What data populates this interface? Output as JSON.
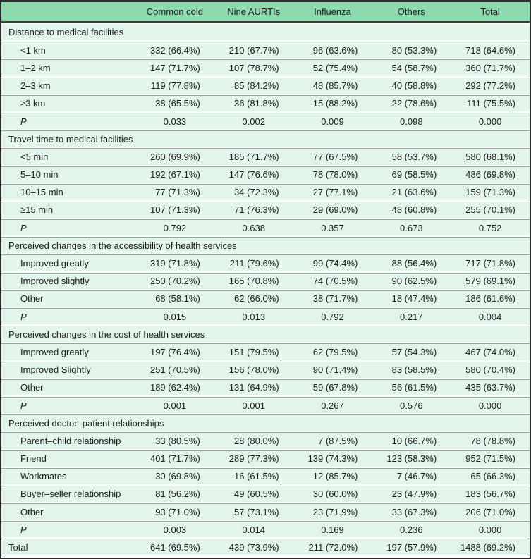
{
  "table": {
    "columns": [
      "Common cold",
      "Nine AURTIs",
      "Influenza",
      "Others",
      "Total"
    ],
    "p_label": "P",
    "sections": [
      {
        "title": "Distance to medical facilities",
        "rows": [
          {
            "label": "<1 km",
            "values": [
              "332 (66.4%)",
              "210 (67.7%)",
              "96 (63.6%)",
              "80 (53.3%)",
              "718 (64.6%)"
            ]
          },
          {
            "label": "1–2 km",
            "values": [
              "147 (71.7%)",
              "107 (78.7%)",
              "52 (75.4%)",
              "54 (58.7%)",
              "360 (71.7%)"
            ]
          },
          {
            "label": "2–3 km",
            "values": [
              "119 (77.8%)",
              "85 (84.2%)",
              "48 (85.7%)",
              "40 (58.8%)",
              "292 (77.2%)"
            ]
          },
          {
            "label": "≥3 km",
            "values": [
              "38 (65.5%)",
              "36 (81.8%)",
              "15 (88.2%)",
              "22 (78.6%)",
              "111 (75.5%)"
            ]
          }
        ],
        "p_values": [
          "0.033",
          "0.002",
          "0.009",
          "0.098",
          "0.000"
        ]
      },
      {
        "title": "Travel time to medical facilities",
        "rows": [
          {
            "label": "<5 min",
            "values": [
              "260 (69.9%)",
              "185 (71.7%)",
              "77 (67.5%)",
              "58 (53.7%)",
              "580 (68.1%)"
            ]
          },
          {
            "label": "5–10 min",
            "values": [
              "192 (67.1%)",
              "147 (76.6%)",
              "78 (78.0%)",
              "69 (58.5%)",
              "486 (69.8%)"
            ]
          },
          {
            "label": "10–15 min",
            "values": [
              "77 (71.3%)",
              "34 (72.3%)",
              "27 (77.1%)",
              "21 (63.6%)",
              "159 (71.3%)"
            ]
          },
          {
            "label": "≥15 min",
            "values": [
              "107 (71.3%)",
              "71 (76.3%)",
              "29 (69.0%)",
              "48 (60.8%)",
              "255 (70.1%)"
            ]
          }
        ],
        "p_values": [
          "0.792",
          "0.638",
          "0.357",
          "0.673",
          "0.752"
        ]
      },
      {
        "title": "Perceived changes in the accessibility of health services",
        "rows": [
          {
            "label": "Improved greatly",
            "values": [
              "319 (71.8%)",
              "211 (79.6%)",
              "99 (74.4%)",
              "88 (56.4%)",
              "717 (71.8%)"
            ]
          },
          {
            "label": "Improved slightly",
            "values": [
              "250 (70.2%)",
              "165 (70.8%)",
              "74 (70.5%)",
              "90 (62.5%)",
              "579 (69.1%)"
            ]
          },
          {
            "label": "Other",
            "values": [
              "68 (58.1%)",
              "62 (66.0%)",
              "38 (71.7%)",
              "18 (47.4%)",
              "186 (61.6%)"
            ]
          }
        ],
        "p_values": [
          "0.015",
          "0.013",
          "0.792",
          "0.217",
          "0.004"
        ]
      },
      {
        "title": "Perceived changes in the cost of health services",
        "rows": [
          {
            "label": "Improved greatly",
            "values": [
              "197 (76.4%)",
              "151 (79.5%)",
              "62 (79.5%)",
              "57 (54.3%)",
              "467 (74.0%)"
            ]
          },
          {
            "label": "Improved Slightly",
            "values": [
              "251 (70.5%)",
              "156 (78.0%)",
              "90 (71.4%)",
              "83 (58.5%)",
              "580 (70.4%)"
            ]
          },
          {
            "label": "Other",
            "values": [
              "189 (62.4%)",
              "131 (64.9%)",
              "59 (67.8%)",
              "56 (61.5%)",
              "435 (63.7%)"
            ]
          }
        ],
        "p_values": [
          "0.001",
          "0.001",
          "0.267",
          "0.576",
          "0.000"
        ]
      },
      {
        "title": "Perceived doctor–patient relationships",
        "rows": [
          {
            "label": "Parent–child relationship",
            "values": [
              "33 (80.5%)",
              "28 (80.0%)",
              "7 (87.5%)",
              "10 (66.7%)",
              "78 (78.8%)"
            ]
          },
          {
            "label": "Friend",
            "values": [
              "401 (71.7%)",
              "289 (77.3%)",
              "139 (74.3%)",
              "123 (58.3%)",
              "952 (71.5%)"
            ]
          },
          {
            "label": "Workmates",
            "values": [
              "30 (69.8%)",
              "16 (61.5%)",
              "12 (85.7%)",
              "7 (46.7%)",
              "65 (66.3%)"
            ]
          },
          {
            "label": "Buyer–seller relationship",
            "values": [
              "81 (56.2%)",
              "49 (60.5%)",
              "30 (60.0%)",
              "23 (47.9%)",
              "183 (56.7%)"
            ]
          },
          {
            "label": "Other",
            "values": [
              "93 (71.0%)",
              "57 (73.1%)",
              "23 (71.9%)",
              "33 (67.3%)",
              "206 (71.0%)"
            ]
          }
        ],
        "p_values": [
          "0.003",
          "0.014",
          "0.169",
          "0.236",
          "0.000"
        ]
      }
    ],
    "total_row": {
      "label": "Total",
      "values": [
        "641 (69.5%)",
        "439 (73.9%)",
        "211 (72.0%)",
        "197 (57.9%)",
        "1488 (69.2%)"
      ]
    }
  },
  "colors": {
    "header_bg": "#8CDAAE",
    "row_bg": "#E3F5EA",
    "gap_bg": "#FBFEFC",
    "separator": "#93A39A",
    "dark_border": "#2B2B2B"
  }
}
